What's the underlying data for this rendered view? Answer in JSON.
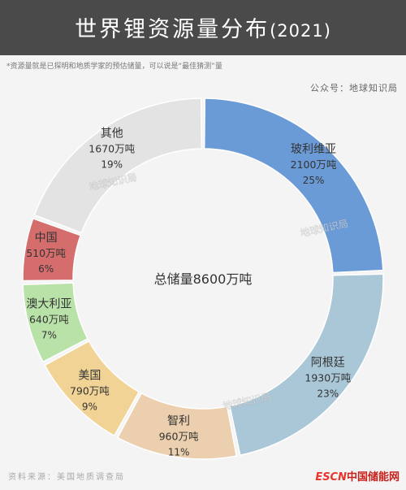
{
  "header": {
    "title": "世界锂资源量分布",
    "year": "(2021)"
  },
  "note": "*资源量就是已探明和地质学家的预估储量，可以说是“最佳猜测”量",
  "account": "公众号：地球知识局",
  "watermark": "地球知识局",
  "source": "资料来源：美国地质调查局",
  "logo": {
    "part1": "ESCN",
    "part2": "中国储能网"
  },
  "chart_data": {
    "type": "pie",
    "donut": true,
    "center_label": "总储量8600万吨",
    "total": 8600,
    "unit": "万吨",
    "slices": [
      {
        "name": "玻利维亚",
        "value_label": "2100万吨",
        "value": 2100,
        "percent_label": "25%",
        "color": "#6b9bd6"
      },
      {
        "name": "阿根廷",
        "value_label": "1930万吨",
        "value": 1930,
        "percent_label": "23%",
        "color": "#a9c7d7"
      },
      {
        "name": "智利",
        "value_label": "960万吨",
        "value": 960,
        "percent_label": "11%",
        "color": "#ebcfae"
      },
      {
        "name": "美国",
        "value_label": "790万吨",
        "value": 790,
        "percent_label": "9%",
        "color": "#f1d495"
      },
      {
        "name": "澳大利亚",
        "value_label": "640万吨",
        "value": 640,
        "percent_label": "7%",
        "color": "#b9e2a9"
      },
      {
        "name": "中国",
        "value_label": "510万吨",
        "value": 510,
        "percent_label": "6%",
        "color": "#d56d6d"
      },
      {
        "name": "其他",
        "value_label": "1670万吨",
        "value": 1670,
        "percent_label": "19%",
        "color": "#e3e3e3"
      }
    ]
  }
}
